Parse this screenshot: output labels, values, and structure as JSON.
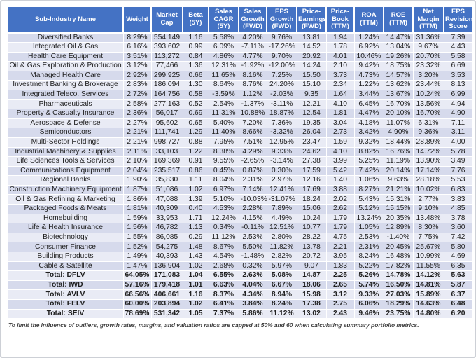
{
  "colors": {
    "header_bg": "#4472C4",
    "header_text": "#FFFFFF",
    "band_dark": "#D6DAEC",
    "band_light": "#E9EBF5",
    "text": "#1F1F1F",
    "frame": "#CDD0D6"
  },
  "chart_data": {
    "type": "table",
    "columns": [
      {
        "key": "name",
        "label": "Sub-Industry Name"
      },
      {
        "key": "weight",
        "label": "Weight"
      },
      {
        "key": "market-cap",
        "label": "Market Cap"
      },
      {
        "key": "beta-5y",
        "label": "Beta (5Y)"
      },
      {
        "key": "sales-cagr-5y",
        "label": "Sales CAGR (5Y)"
      },
      {
        "key": "sales-growth-fwd",
        "label": "Sales Growth (FWD)"
      },
      {
        "key": "eps-growth-fwd",
        "label": "EPS Growth (FWD)"
      },
      {
        "key": "price-earnings-fwd",
        "label": "Price-Earnings (FWD)"
      },
      {
        "key": "price-book-ttm",
        "label": "Price-Book (TTM)"
      },
      {
        "key": "roa-ttm",
        "label": "ROA (TTM)"
      },
      {
        "key": "roe-ttm",
        "label": "ROE (TTM)"
      },
      {
        "key": "net-margin-ttm",
        "label": "Net Margin (TTM)"
      },
      {
        "key": "eps-revision-score",
        "label": "EPS Revision Score"
      }
    ],
    "rows": [
      [
        "Diversified Banks",
        "8.29%",
        "554,149",
        "1.16",
        "5.58%",
        "4.20%",
        "9.76%",
        "13.81",
        "1.94",
        "1.24%",
        "14.47%",
        "31.36%",
        "7.39"
      ],
      [
        "Integrated Oil & Gas",
        "6.16%",
        "393,602",
        "0.99",
        "6.09%",
        "-7.11%",
        "-17.26%",
        "14.52",
        "1.78",
        "6.92%",
        "13.04%",
        "9.67%",
        "4.43"
      ],
      [
        "Health Care Equipment",
        "3.51%",
        "113,272",
        "0.84",
        "4.86%",
        "4.77%",
        "9.70%",
        "20.92",
        "4.01",
        "10.46%",
        "19.26%",
        "20.70%",
        "5.58"
      ],
      [
        "Oil & Gas Exploration & Production",
        "3.12%",
        "77,466",
        "1.36",
        "12.31%",
        "-1.92%",
        "-12.00%",
        "14.24",
        "2.10",
        "9.42%",
        "18.75%",
        "23.32%",
        "6.69"
      ],
      [
        "Managed Health Care",
        "2.92%",
        "299,925",
        "0.66",
        "11.65%",
        "8.16%",
        "7.25%",
        "15.50",
        "3.73",
        "4.73%",
        "14.57%",
        "3.20%",
        "3.53"
      ],
      [
        "Investment Banking & Brokerage",
        "2.83%",
        "186,094",
        "1.30",
        "8.64%",
        "8.76%",
        "24.20%",
        "15.10",
        "2.34",
        "1.22%",
        "13.62%",
        "23.44%",
        "8.13"
      ],
      [
        "Integrated Teleco. Services",
        "2.72%",
        "164,756",
        "0.58",
        "-3.59%",
        "1.12%",
        "-2.03%",
        "9.35",
        "1.64",
        "3.44%",
        "13.67%",
        "10.24%",
        "6.99"
      ],
      [
        "Pharmaceuticals",
        "2.58%",
        "277,163",
        "0.52",
        "2.54%",
        "-1.37%",
        "-3.11%",
        "12.21",
        "4.10",
        "6.45%",
        "16.70%",
        "13.56%",
        "4.94"
      ],
      [
        "Property & Casualty Insurance",
        "2.36%",
        "56,017",
        "0.69",
        "11.31%",
        "10.88%",
        "18.87%",
        "12.54",
        "1.81",
        "4.47%",
        "20.10%",
        "16.70%",
        "4.90"
      ],
      [
        "Aerospace & Defense",
        "2.27%",
        "95,602",
        "0.65",
        "5.40%",
        "7.20%",
        "7.36%",
        "19.35",
        "3.04",
        "4.18%",
        "11.07%",
        "6.31%",
        "7.11"
      ],
      [
        "Semiconductors",
        "2.21%",
        "111,741",
        "1.29",
        "11.40%",
        "8.66%",
        "-3.32%",
        "26.04",
        "2.73",
        "3.42%",
        "4.90%",
        "9.36%",
        "3.11"
      ],
      [
        "Multi-Sector Holdings",
        "2.21%",
        "998,727",
        "0.88",
        "7.95%",
        "7.51%",
        "12.95%",
        "23.47",
        "1.59",
        "9.32%",
        "18.44%",
        "28.89%",
        "4.00"
      ],
      [
        "Industrial Machinery & Supplies",
        "2.11%",
        "33,103",
        "1.22",
        "8.38%",
        "4.29%",
        "9.33%",
        "24.62",
        "4.10",
        "8.82%",
        "16.76%",
        "14.72%",
        "5.78"
      ],
      [
        "Life Sciences Tools & Services",
        "2.10%",
        "169,369",
        "0.91",
        "9.55%",
        "-2.65%",
        "-3.14%",
        "27.38",
        "3.99",
        "5.25%",
        "11.19%",
        "13.90%",
        "3.49"
      ],
      [
        "Communications Equipment",
        "2.04%",
        "235,517",
        "0.86",
        "0.45%",
        "0.87%",
        "0.30%",
        "17.59",
        "5.42",
        "7.42%",
        "20.14%",
        "17.14%",
        "7.76"
      ],
      [
        "Regional Banks",
        "1.90%",
        "35,830",
        "1.11",
        "8.04%",
        "2.31%",
        "2.97%",
        "12.16",
        "1.40",
        "1.06%",
        "9.63%",
        "28.18%",
        "5.53"
      ],
      [
        "Construction Machinery Equipment",
        "1.87%",
        "51,086",
        "1.02",
        "6.97%",
        "7.14%",
        "12.41%",
        "17.69",
        "3.88",
        "8.27%",
        "21.21%",
        "10.02%",
        "6.83"
      ],
      [
        "Oil & Gas Refining & Marketing",
        "1.86%",
        "47,088",
        "1.39",
        "5.10%",
        "-10.03%",
        "-31.07%",
        "18.24",
        "2.02",
        "5.43%",
        "15.31%",
        "2.77%",
        "3.83"
      ],
      [
        "Packaged Foods & Meats",
        "1.81%",
        "40,309",
        "0.40",
        "4.53%",
        "2.28%",
        "7.89%",
        "15.06",
        "2.62",
        "5.12%",
        "15.15%",
        "9.10%",
        "4.85"
      ],
      [
        "Homebuilding",
        "1.59%",
        "33,953",
        "1.71",
        "12.24%",
        "4.15%",
        "4.49%",
        "10.24",
        "1.79",
        "13.24%",
        "20.35%",
        "13.48%",
        "3.78"
      ],
      [
        "Life & Health Insurance",
        "1.56%",
        "46,782",
        "1.13",
        "0.34%",
        "-0.11%",
        "12.51%",
        "10.77",
        "1.79",
        "1.05%",
        "12.89%",
        "8.30%",
        "3.60"
      ],
      [
        "Biotechnology",
        "1.55%",
        "86,085",
        "0.29",
        "11.12%",
        "2.53%",
        "2.80%",
        "28.22",
        "4.75",
        "2.53%",
        "-1.40%",
        "7.75%",
        "7.42"
      ],
      [
        "Consumer Finance",
        "1.52%",
        "54,275",
        "1.48",
        "8.67%",
        "5.50%",
        "11.82%",
        "13.78",
        "2.21",
        "2.31%",
        "20.45%",
        "25.67%",
        "5.80"
      ],
      [
        "Building Products",
        "1.49%",
        "40,393",
        "1.43",
        "4.54%",
        "-1.48%",
        "2.82%",
        "20.72",
        "3.95",
        "8.24%",
        "16.48%",
        "10.99%",
        "4.69"
      ],
      [
        "Cable & Satellite",
        "1.47%",
        "136,904",
        "1.02",
        "2.68%",
        "0.32%",
        "5.97%",
        "9.07",
        "1.83",
        "5.22%",
        "17.82%",
        "11.55%",
        "6.35"
      ]
    ],
    "totals": [
      [
        "Total: DFLV",
        "64.05%",
        "171,083",
        "1.04",
        "6.55%",
        "2.63%",
        "5.08%",
        "14.87",
        "2.25",
        "5.26%",
        "14.78%",
        "14.12%",
        "5.63"
      ],
      [
        "Total: IWD",
        "57.16%",
        "179,418",
        "1.01",
        "6.63%",
        "4.04%",
        "6.67%",
        "18.06",
        "2.65",
        "5.74%",
        "16.50%",
        "14.81%",
        "5.87"
      ],
      [
        "Total: AVLV",
        "66.56%",
        "406,661",
        "1.16",
        "8.37%",
        "4.34%",
        "8.94%",
        "15.98",
        "3.12",
        "9.33%",
        "27.03%",
        "15.89%",
        "6.37"
      ],
      [
        "Total: FELV",
        "60.00%",
        "203,894",
        "1.02",
        "6.41%",
        "3.84%",
        "8.24%",
        "17.38",
        "2.75",
        "6.06%",
        "18.29%",
        "14.63%",
        "6.48"
      ],
      [
        "Total: SEIV",
        "78.69%",
        "531,342",
        "1.05",
        "7.37%",
        "5.86%",
        "11.12%",
        "13.02",
        "2.43",
        "9.46%",
        "23.75%",
        "14.80%",
        "6.20"
      ]
    ],
    "footnote": "To limit the influence of outliers, growth rates, margins, and valuation ratios are capped at 50% and 60 when calculating summary portfolio metrics."
  }
}
